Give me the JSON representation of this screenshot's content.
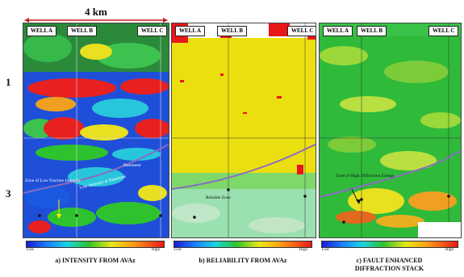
{
  "scale_label": "4 km",
  "row_labels": [
    "1",
    "3"
  ],
  "wells": [
    "WELL A",
    "WELL B",
    "WELL C"
  ],
  "colorbar": {
    "low": "Low",
    "high": "High"
  },
  "panels": [
    {
      "caption": "a) INTENSITY FROM AVAz",
      "annotations": [
        "Zone of Low Fracture Intensity",
        "Low Intensity at Basement",
        "Basement"
      ]
    },
    {
      "caption": "b) RELIABILITY FROM AVAz",
      "annotations": [
        "Reliable Zone"
      ]
    },
    {
      "caption": "c) FAULT ENHANCED DIFFRACTION STACK",
      "annotations": [
        "Zone of High Diffraction Energy"
      ]
    }
  ],
  "colors": {
    "scale_bar": "#c02020",
    "horizon": "#8a6cc0",
    "colorbar_low": "#1a1ad6",
    "colorbar_high": "#e81717"
  }
}
